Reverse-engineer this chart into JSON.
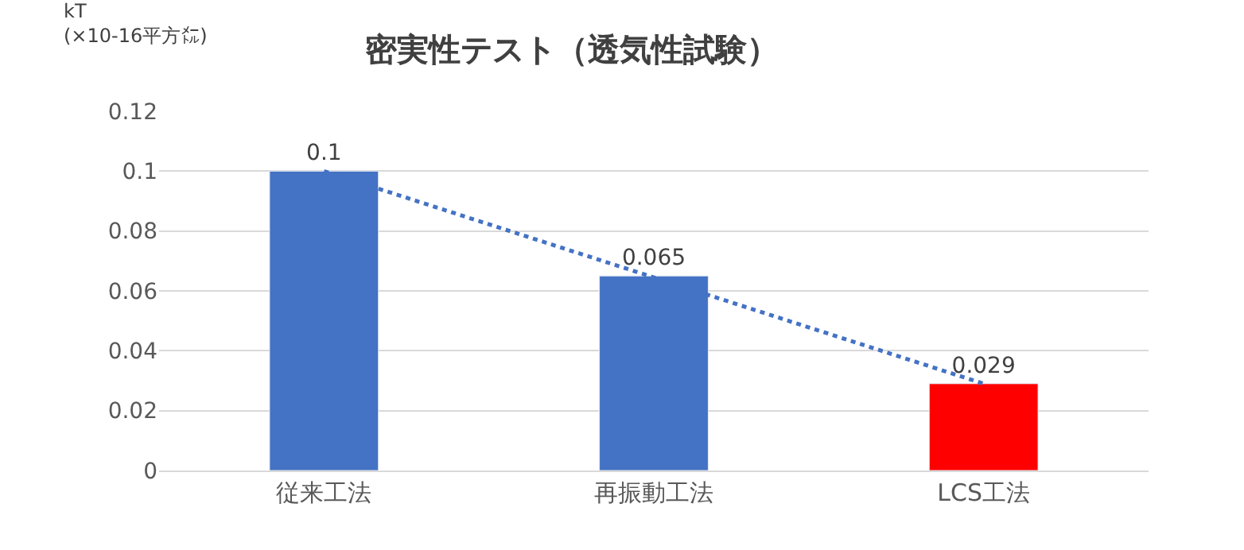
{
  "chart_data": {
    "type": "bar",
    "title": "密実性テスト（透気性試験）",
    "ylabel": "kT\n(×10-16平方㍍)",
    "categories": [
      "従来工法",
      "再振動工法",
      "LCS工法"
    ],
    "series": [
      {
        "colors": [
          "#4472c4",
          "#4472c4",
          "#ff0000"
        ],
        "values": [
          0.1,
          0.065,
          0.029
        ],
        "value_labels": [
          "0.1",
          "0.065",
          "0.029"
        ]
      },
      {
        "type": "line",
        "color": "#4472c4",
        "line_style": "dotted",
        "values": [
          0.1,
          0.0645,
          0.029
        ]
      }
    ],
    "ylim": [
      0,
      0.12
    ],
    "yticks": [
      0,
      0.02,
      0.04,
      0.06,
      0.08,
      0.1,
      0.12
    ],
    "grid": "y"
  }
}
